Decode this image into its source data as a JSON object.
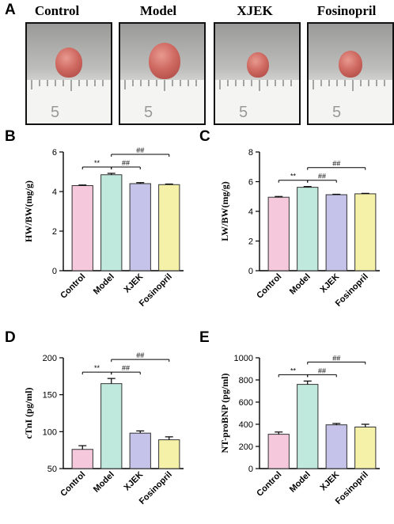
{
  "panels": {
    "A": "A",
    "B": "B",
    "C": "C",
    "D": "D",
    "E": "E"
  },
  "photos": [
    {
      "title": "Control",
      "ruler_mark": "5"
    },
    {
      "title": "Model",
      "ruler_mark": "5"
    },
    {
      "title": "XJEK",
      "ruler_mark": "5"
    },
    {
      "title": "Fosinopril",
      "ruler_mark": "5"
    }
  ],
  "colors": {
    "Control": "#f5c8dc",
    "Model": "#bfe9dc",
    "XJEK": "#c5c3ea",
    "Fosinopril": "#f6f1a8"
  },
  "chart_data": [
    {
      "type": "bar",
      "panel": "B",
      "categories": [
        "Control",
        "Model",
        "XJEK",
        "Fosinopril"
      ],
      "values": [
        4.3,
        4.85,
        4.4,
        4.35
      ],
      "errors": [
        0.03,
        0.07,
        0.05,
        0.03
      ],
      "ylabel": "HW/BW(mg/g)",
      "ylim": [
        0,
        6
      ],
      "yticks": [
        "0",
        "2",
        "4",
        "6"
      ],
      "tickvals": [
        0,
        2,
        4,
        6
      ],
      "annotations": [
        {
          "from": 0,
          "to": 1,
          "label": "**"
        },
        {
          "from": 1,
          "to": 2,
          "label": "##"
        },
        {
          "from": 1,
          "to": 3,
          "label": "##"
        }
      ]
    },
    {
      "type": "bar",
      "panel": "C",
      "categories": [
        "Control",
        "Model",
        "XJEK",
        "Fosinopril"
      ],
      "values": [
        4.95,
        5.62,
        5.12,
        5.18
      ],
      "errors": [
        0.05,
        0.05,
        0.03,
        0.03
      ],
      "ylabel": "LW/BW(mg/g)",
      "ylim": [
        0,
        8
      ],
      "yticks": [
        "0",
        "2",
        "4",
        "6",
        "8"
      ],
      "tickvals": [
        0,
        2,
        4,
        6,
        8
      ],
      "annotations": [
        {
          "from": 0,
          "to": 1,
          "label": "**"
        },
        {
          "from": 1,
          "to": 2,
          "label": "##"
        },
        {
          "from": 1,
          "to": 3,
          "label": "##"
        }
      ]
    },
    {
      "type": "bar",
      "panel": "D",
      "categories": [
        "Control",
        "Model",
        "XJEK",
        "Fosinopril"
      ],
      "values": [
        76,
        165,
        98,
        89
      ],
      "errors": [
        5,
        7,
        3,
        4
      ],
      "ylabel": "cTnI (pg/ml)",
      "ylim": [
        50,
        200
      ],
      "yticks": [
        "50",
        "100",
        "150",
        "200"
      ],
      "tickvals": [
        50,
        100,
        150,
        200
      ],
      "annotations": [
        {
          "from": 0,
          "to": 1,
          "label": "**"
        },
        {
          "from": 1,
          "to": 2,
          "label": "##"
        },
        {
          "from": 1,
          "to": 3,
          "label": "##"
        }
      ]
    },
    {
      "type": "bar",
      "panel": "E",
      "categories": [
        "Control",
        "Model",
        "XJEK",
        "Fosinopril"
      ],
      "values": [
        310,
        760,
        395,
        375
      ],
      "errors": [
        20,
        30,
        12,
        25
      ],
      "ylabel": "NT-proBNP (pg/ml)",
      "ylim": [
        0,
        1000
      ],
      "yticks": [
        "0",
        "200",
        "400",
        "600",
        "800",
        "1000"
      ],
      "tickvals": [
        0,
        200,
        400,
        600,
        800,
        1000
      ],
      "annotations": [
        {
          "from": 0,
          "to": 1,
          "label": "**"
        },
        {
          "from": 1,
          "to": 2,
          "label": "##"
        },
        {
          "from": 1,
          "to": 3,
          "label": "##"
        }
      ]
    }
  ]
}
